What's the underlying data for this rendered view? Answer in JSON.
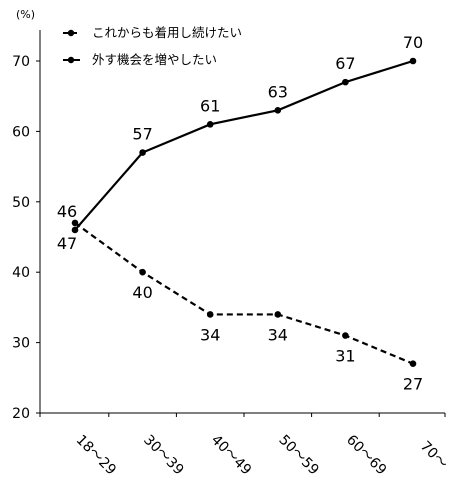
{
  "chart_data": {
    "type": "line",
    "unit": "(%)",
    "categories": [
      "18～29",
      "30～39",
      "40～49",
      "50～59",
      "60～69",
      "70～"
    ],
    "ylim": [
      20,
      70
    ],
    "yticks": [
      20,
      30,
      40,
      50,
      60,
      70
    ],
    "grid": false,
    "legend_position": "top-left",
    "series": [
      {
        "name": "これからも着用し続けたい",
        "style": "dashed",
        "color": "#000000",
        "values": [
          47,
          40,
          34,
          34,
          31,
          27
        ]
      },
      {
        "name": "外す機会を増やしたい",
        "style": "solid",
        "color": "#000000",
        "values": [
          46,
          57,
          61,
          63,
          67,
          70
        ]
      }
    ]
  }
}
